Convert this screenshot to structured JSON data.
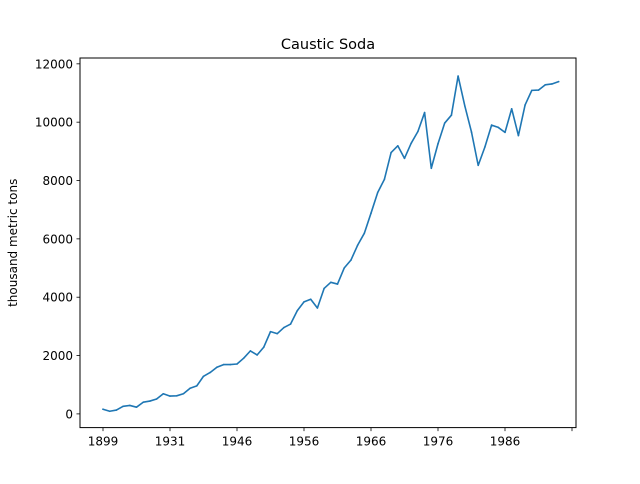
{
  "chart_data": {
    "type": "line",
    "title": "Caustic Soda",
    "xlabel": "",
    "ylabel": "thousand metric tons",
    "x_tick_labels": [
      "1899",
      "1931",
      "1946",
      "1956",
      "1966",
      "1976",
      "1986",
      ""
    ],
    "y_ticks": [
      0,
      2000,
      4000,
      6000,
      8000,
      10000,
      12000
    ],
    "ylim": [
      -470,
      12200
    ],
    "grid": false,
    "colors": {
      "line": "#1f77b4"
    },
    "series": [
      {
        "name": "",
        "values": [
          160,
          90,
          130,
          260,
          290,
          230,
          400,
          440,
          510,
          690,
          610,
          620,
          690,
          880,
          960,
          1290,
          1420,
          1600,
          1690,
          1690,
          1710,
          1910,
          2160,
          2020,
          2290,
          2820,
          2750,
          2960,
          3080,
          3540,
          3840,
          3930,
          3630,
          4300,
          4510,
          4450,
          5000,
          5270,
          5780,
          6190,
          6880,
          7590,
          8040,
          8960,
          9190,
          8760,
          9280,
          9680,
          10330,
          8420,
          9260,
          9970,
          10240,
          11580,
          10560,
          9660,
          8520,
          9150,
          9900,
          9820,
          9650,
          10460,
          9540,
          10590,
          11090,
          11100,
          11280,
          11310,
          11390
        ]
      }
    ]
  }
}
